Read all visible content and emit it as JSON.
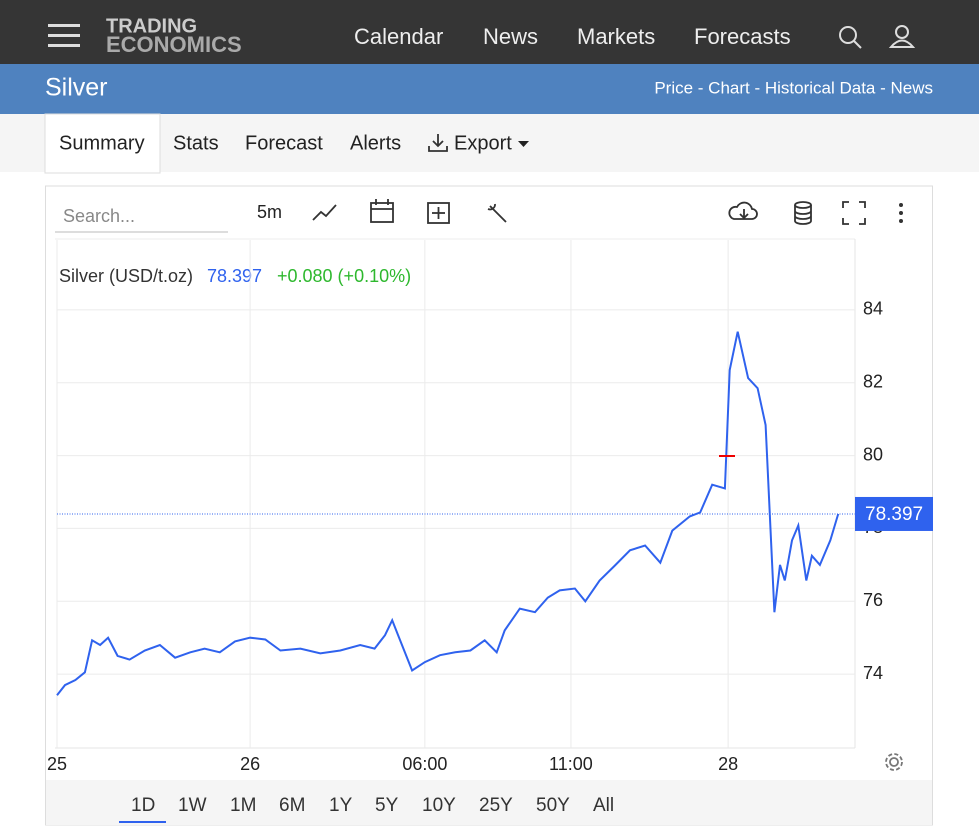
{
  "nav": {
    "logo_top": "TRADING",
    "logo_bottom": "ECONOMICS",
    "items": [
      "Calendar",
      "News",
      "Markets",
      "Forecasts"
    ]
  },
  "header": {
    "title": "Silver",
    "links": "Price - Chart - Historical Data - News"
  },
  "tabs": [
    "Summary",
    "Stats",
    "Forecast",
    "Alerts",
    "Export"
  ],
  "toolbar": {
    "search": "Search...",
    "interval": "5m"
  },
  "ranges": [
    "1D",
    "1W",
    "1M",
    "6M",
    "1Y",
    "5Y",
    "10Y",
    "25Y",
    "50Y",
    "All"
  ],
  "chart_data": {
    "type": "line",
    "title": "Silver (USD/t.oz)",
    "last_price": 78.397,
    "change": "+0.080 (+0.10%)",
    "xlim": [
      0,
      100
    ],
    "xticks": [
      {
        "value": 0,
        "label": "25"
      },
      {
        "value": 24.2,
        "label": "26"
      },
      {
        "value": 46.1,
        "label": "06:00"
      },
      {
        "value": 64.4,
        "label": "11:00"
      },
      {
        "value": 84.1,
        "label": "28"
      }
    ],
    "ylim": [
      72,
      86
    ],
    "yticks": [
      74,
      76,
      78,
      80,
      82,
      84
    ],
    "grid": true,
    "series": [
      {
        "name": "Silver",
        "color": "#2f62ee",
        "x": [
          0,
          1,
          2.3,
          3.5,
          4.4,
          5.4,
          6.4,
          7.6,
          9.1,
          11,
          12.9,
          14.8,
          16.7,
          18.5,
          20.4,
          22.3,
          24.2,
          26.1,
          28,
          30.5,
          33,
          35.5,
          38,
          39.8,
          41.1,
          42,
          43,
          44.5,
          46.1,
          48,
          49.9,
          51.8,
          53.6,
          55.1,
          56.1,
          58,
          59.9,
          61.5,
          63,
          64.9,
          66.2,
          68,
          69.9,
          71.8,
          73.7,
          75.6,
          77.1,
          79.3,
          80.6,
          82.1,
          83.7,
          84.3,
          85.3,
          86.6,
          87.8,
          88.8,
          89.9,
          90.6,
          91.2,
          92.1,
          92.9,
          93.9,
          94.6,
          95.6,
          96.9,
          97.9
        ],
        "values": [
          73.42,
          73.7,
          73.84,
          74.05,
          74.93,
          74.8,
          75,
          74.5,
          74.4,
          74.65,
          74.8,
          74.45,
          74.6,
          74.7,
          74.6,
          74.9,
          75,
          74.95,
          74.65,
          74.7,
          74.57,
          74.65,
          74.8,
          74.7,
          75.07,
          75.48,
          74.93,
          74.1,
          74.33,
          74.52,
          74.6,
          74.65,
          74.93,
          74.6,
          75.2,
          75.8,
          75.7,
          76.1,
          76.3,
          76.35,
          76,
          76.57,
          76.98,
          77.4,
          77.53,
          77.06,
          77.94,
          78.33,
          78.44,
          79.2,
          79.1,
          82.35,
          83.4,
          82.13,
          81.85,
          80.84,
          75.7,
          77,
          76.57,
          77.67,
          78.08,
          76.57,
          77.25,
          77,
          77.67,
          78.397
        ]
      }
    ]
  }
}
